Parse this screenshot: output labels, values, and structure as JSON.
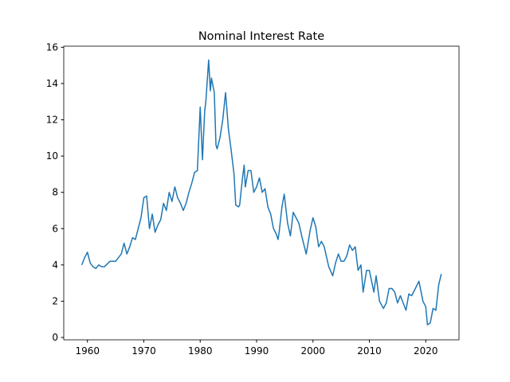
{
  "chart_data": {
    "type": "line",
    "title": "Nominal Interest Rate",
    "color": "#1f77b4",
    "grid": false,
    "x": [
      1959.0,
      1959.5,
      1960.0,
      1960.5,
      1961.0,
      1961.5,
      1962.0,
      1962.5,
      1963.0,
      1964.0,
      1965.0,
      1966.0,
      1966.5,
      1967.0,
      1967.5,
      1968.0,
      1968.5,
      1969.0,
      1969.5,
      1970.0,
      1970.5,
      1971.0,
      1971.5,
      1972.0,
      1972.5,
      1973.0,
      1973.5,
      1974.0,
      1974.5,
      1975.0,
      1975.5,
      1976.0,
      1976.5,
      1977.0,
      1977.5,
      1978.0,
      1978.5,
      1979.0,
      1979.5,
      1980.0,
      1980.4,
      1980.8,
      1981.0,
      1981.5,
      1981.8,
      1982.0,
      1982.5,
      1982.8,
      1983.0,
      1983.5,
      1984.0,
      1984.5,
      1985.0,
      1985.5,
      1986.0,
      1986.3,
      1986.8,
      1987.0,
      1987.5,
      1987.8,
      1988.0,
      1988.5,
      1989.0,
      1989.5,
      1990.0,
      1990.5,
      1991.0,
      1991.5,
      1992.0,
      1992.5,
      1993.0,
      1993.5,
      1993.8,
      1994.0,
      1994.5,
      1994.9,
      1995.5,
      1996.0,
      1996.5,
      1997.0,
      1997.5,
      1998.0,
      1998.8,
      1999.5,
      2000.0,
      2000.5,
      2001.0,
      2001.5,
      2002.0,
      2002.8,
      2003.5,
      2004.0,
      2004.5,
      2005.0,
      2005.5,
      2006.0,
      2006.5,
      2007.0,
      2007.5,
      2008.0,
      2008.5,
      2008.9,
      2009.5,
      2010.0,
      2010.8,
      2011.2,
      2011.8,
      2012.5,
      2013.0,
      2013.5,
      2014.0,
      2014.5,
      2015.0,
      2015.5,
      2016.5,
      2017.0,
      2017.5,
      2018.0,
      2018.8,
      2019.5,
      2020.0,
      2020.3,
      2020.8,
      2021.3,
      2021.8,
      2022.3,
      2022.75
    ],
    "values": [
      4.0,
      4.4,
      4.7,
      4.1,
      3.9,
      3.8,
      4.0,
      3.9,
      3.9,
      4.2,
      4.2,
      4.6,
      5.2,
      4.6,
      5.0,
      5.5,
      5.4,
      6.0,
      6.6,
      7.7,
      7.8,
      6.0,
      6.8,
      5.8,
      6.2,
      6.5,
      7.4,
      7.0,
      8.0,
      7.5,
      8.3,
      7.7,
      7.4,
      7.0,
      7.4,
      8.0,
      8.5,
      9.1,
      9.2,
      12.7,
      9.8,
      12.5,
      13.0,
      15.3,
      13.6,
      14.3,
      13.5,
      10.6,
      10.4,
      11.0,
      12.0,
      13.5,
      11.5,
      10.3,
      9.0,
      7.3,
      7.2,
      7.3,
      8.8,
      9.5,
      8.3,
      9.2,
      9.2,
      8.0,
      8.3,
      8.8,
      8.0,
      8.2,
      7.2,
      6.8,
      6.0,
      5.7,
      5.4,
      5.8,
      7.2,
      7.9,
      6.3,
      5.6,
      6.9,
      6.6,
      6.3,
      5.6,
      4.6,
      5.9,
      6.6,
      6.1,
      5.0,
      5.3,
      5.0,
      3.9,
      3.4,
      4.1,
      4.6,
      4.2,
      4.2,
      4.5,
      5.1,
      4.8,
      5.0,
      3.7,
      4.0,
      2.5,
      3.7,
      3.7,
      2.5,
      3.4,
      2.0,
      1.6,
      1.9,
      2.7,
      2.7,
      2.5,
      1.9,
      2.3,
      1.5,
      2.4,
      2.3,
      2.6,
      3.1,
      2.0,
      1.7,
      0.7,
      0.8,
      1.6,
      1.5,
      2.9,
      3.5
    ],
    "xlim": [
      1955.8,
      2025.9
    ],
    "xticks": [
      1960,
      1970,
      1980,
      1990,
      2000,
      2010,
      2020
    ],
    "ylim": [
      -0.13,
      16.06
    ],
    "yticks": [
      0,
      2,
      4,
      6,
      8,
      10,
      12,
      14,
      16
    ]
  }
}
